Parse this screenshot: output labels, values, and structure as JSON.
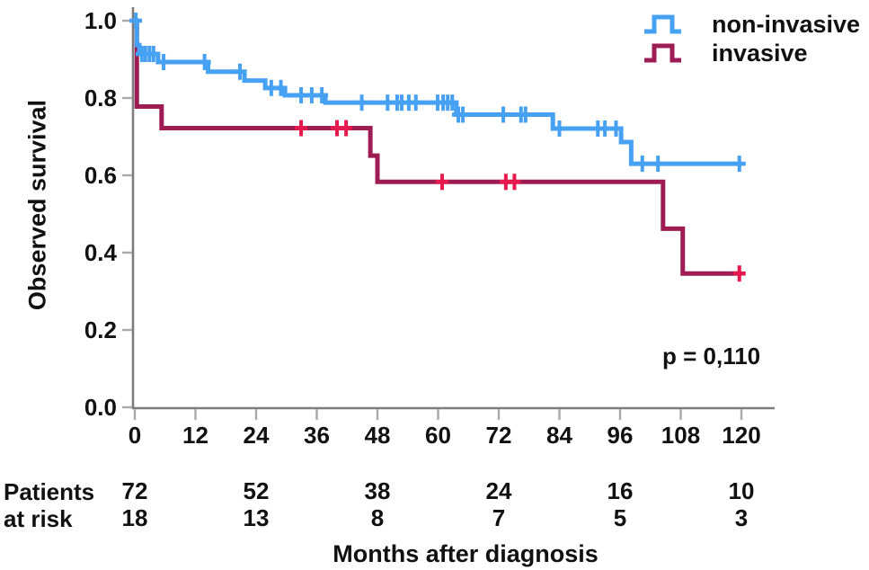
{
  "chart_data": {
    "type": "line",
    "subtype": "kaplan-meier-step",
    "title": "",
    "xlabel": "Months after diagnosis",
    "ylabel": "Observed survival",
    "xlim": [
      0,
      120
    ],
    "ylim": [
      0.0,
      1.0
    ],
    "x_ticks": [
      0,
      12,
      24,
      36,
      48,
      60,
      72,
      84,
      96,
      108,
      120
    ],
    "x_tick_labels": [
      "0",
      "12",
      "24",
      "36",
      "48",
      "60",
      "72",
      "84",
      "96",
      "108",
      "120"
    ],
    "y_ticks": [
      0.0,
      0.2,
      0.4,
      0.6,
      0.8,
      1.0
    ],
    "y_tick_labels": [
      "0.0",
      "0.2",
      "0.4",
      "0.6",
      "0.8",
      "1.0"
    ],
    "grid": false,
    "legend_position": "top-right",
    "annotation": "p = 0,110",
    "colors": {
      "axis": "#7d7d7d",
      "tick": "#a9a9a9",
      "text": "#111111",
      "background": "#ffffff"
    },
    "series": [
      {
        "name": "non-invasive",
        "color": "#47a1f2",
        "censor_color": "#47a1f2",
        "steps": [
          [
            0,
            1.0
          ],
          [
            0.4,
            0.937
          ],
          [
            0.9,
            0.914
          ],
          [
            4.6,
            0.893
          ],
          [
            14.5,
            0.868
          ],
          [
            21.7,
            0.845
          ],
          [
            25.8,
            0.826
          ],
          [
            29.7,
            0.807
          ],
          [
            37.7,
            0.788
          ],
          [
            63.6,
            0.757
          ],
          [
            82.7,
            0.721
          ],
          [
            96.2,
            0.686
          ],
          [
            98.2,
            0.63
          ]
        ],
        "end_t": 120,
        "censors": [
          [
            0.2,
            1.0
          ],
          [
            1.4,
            0.914
          ],
          [
            2.1,
            0.914
          ],
          [
            2.9,
            0.914
          ],
          [
            3.7,
            0.914
          ],
          [
            5.7,
            0.893
          ],
          [
            13.8,
            0.893
          ],
          [
            20.8,
            0.868
          ],
          [
            27.0,
            0.826
          ],
          [
            28.9,
            0.826
          ],
          [
            32.9,
            0.807
          ],
          [
            35.0,
            0.807
          ],
          [
            37.0,
            0.807
          ],
          [
            44.9,
            0.788
          ],
          [
            50.0,
            0.788
          ],
          [
            51.9,
            0.788
          ],
          [
            52.8,
            0.788
          ],
          [
            54.2,
            0.788
          ],
          [
            55.6,
            0.788
          ],
          [
            59.9,
            0.788
          ],
          [
            61.0,
            0.788
          ],
          [
            61.9,
            0.788
          ],
          [
            62.8,
            0.788
          ],
          [
            64.0,
            0.757
          ],
          [
            64.9,
            0.757
          ],
          [
            72.9,
            0.757
          ],
          [
            76.4,
            0.757
          ],
          [
            77.3,
            0.757
          ],
          [
            84.0,
            0.721
          ],
          [
            91.6,
            0.721
          ],
          [
            93.0,
            0.721
          ],
          [
            95.2,
            0.721
          ],
          [
            100.4,
            0.63
          ],
          [
            103.5,
            0.63
          ],
          [
            119.6,
            0.63
          ]
        ]
      },
      {
        "name": "invasive",
        "color": "#9e1c54",
        "censor_color": "#e5194d",
        "steps": [
          [
            0,
            1.0
          ],
          [
            0.4,
            0.778
          ],
          [
            5.3,
            0.722
          ],
          [
            46.6,
            0.651
          ],
          [
            48.0,
            0.583
          ],
          [
            104.5,
            0.462
          ],
          [
            108.4,
            0.346
          ]
        ],
        "end_t": 120,
        "censors": [
          [
            32.9,
            0.722
          ],
          [
            40.0,
            0.722
          ],
          [
            41.8,
            0.722
          ],
          [
            60.8,
            0.583
          ],
          [
            73.4,
            0.583
          ],
          [
            75.1,
            0.583
          ],
          [
            119.6,
            0.346
          ]
        ]
      }
    ],
    "risk_table": {
      "label_lines": [
        "Patients",
        "at risk"
      ],
      "times": [
        0,
        24,
        48,
        72,
        96,
        120
      ],
      "rows": [
        {
          "name": "non-invasive",
          "values": [
            "72",
            "52",
            "38",
            "24",
            "16",
            "10"
          ]
        },
        {
          "name": "invasive",
          "values": [
            "18",
            "13",
            "8",
            "7",
            "5",
            "3"
          ]
        }
      ]
    }
  }
}
